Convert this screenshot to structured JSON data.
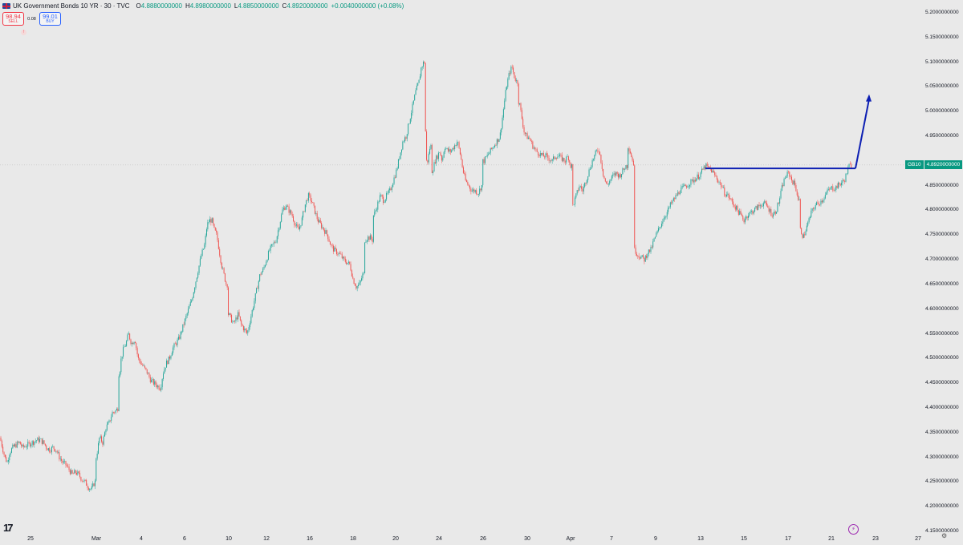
{
  "legend": {
    "title": "UK Government Bonds 10 YR · 30 · TVC",
    "open_key": "O",
    "open_val": "4.8880000000",
    "high_key": "H",
    "high_val": "4.8980000000",
    "low_key": "L",
    "low_val": "4.8850000000",
    "close_key": "C",
    "close_val": "4.8920000000",
    "change": "+0.0040000000 (+0.08%)"
  },
  "trade": {
    "sell_price": "98.94",
    "sell_label": "SELL",
    "spread": "0.08",
    "buy_price": "99.01",
    "buy_label": "BUY"
  },
  "price_label": {
    "symbol": "GB10",
    "value": "4.8920000000"
  },
  "y_axis": [
    "5.2000000000",
    "5.1500000000",
    "5.1000000000",
    "5.0500000000",
    "5.0000000000",
    "4.9500000000",
    "4.8500000000",
    "4.8000000000",
    "4.7500000000",
    "4.7000000000",
    "4.6500000000",
    "4.6000000000",
    "4.5500000000",
    "4.5000000000",
    "4.4500000000",
    "4.4000000000",
    "4.3500000000",
    "4.3000000000",
    "4.2500000000",
    "4.2000000000",
    "4.1500000000"
  ],
  "x_axis": [
    "25",
    "Mar",
    "4",
    "6",
    "10",
    "12",
    "16",
    "18",
    "20",
    "24",
    "26",
    "30",
    "Apr",
    "7",
    "9",
    "13",
    "15",
    "17",
    "21",
    "23",
    "27"
  ],
  "chart_data": {
    "type": "candlestick",
    "ylim": [
      4.15,
      5.2
    ],
    "current_price": 4.892,
    "up_color": "#26a69a",
    "down_color": "#ef5350",
    "path": [
      [
        0,
        4.34
      ],
      [
        3,
        4.32
      ],
      [
        6,
        4.3
      ],
      [
        9,
        4.29
      ],
      [
        12,
        4.31
      ],
      [
        16,
        4.32
      ],
      [
        20,
        4.325
      ],
      [
        24,
        4.33
      ],
      [
        28,
        4.32
      ],
      [
        34,
        4.325
      ],
      [
        40,
        4.33
      ],
      [
        46,
        4.335
      ],
      [
        50,
        4.335
      ],
      [
        54,
        4.33
      ],
      [
        58,
        4.32
      ],
      [
        62,
        4.315
      ],
      [
        66,
        4.32
      ],
      [
        70,
        4.315
      ],
      [
        74,
        4.3
      ],
      [
        78,
        4.29
      ],
      [
        82,
        4.285
      ],
      [
        86,
        4.275
      ],
      [
        90,
        4.265
      ],
      [
        94,
        4.27
      ],
      [
        98,
        4.265
      ],
      [
        102,
        4.255
      ],
      [
        106,
        4.25
      ],
      [
        110,
        4.24
      ],
      [
        114,
        4.235
      ],
      [
        118,
        4.25
      ],
      [
        120,
        4.3
      ],
      [
        124,
        4.34
      ],
      [
        128,
        4.33
      ],
      [
        132,
        4.36
      ],
      [
        136,
        4.37
      ],
      [
        140,
        4.39
      ],
      [
        145,
        4.395
      ],
      [
        147,
        4.4
      ],
      [
        149,
        4.47
      ],
      [
        151,
        4.5
      ],
      [
        154,
        4.52
      ],
      [
        157,
        4.53
      ],
      [
        160,
        4.55
      ],
      [
        164,
        4.53
      ],
      [
        168,
        4.54
      ],
      [
        172,
        4.5
      ],
      [
        176,
        4.49
      ],
      [
        180,
        4.48
      ],
      [
        184,
        4.47
      ],
      [
        188,
        4.455
      ],
      [
        192,
        4.45
      ],
      [
        196,
        4.445
      ],
      [
        200,
        4.44
      ],
      [
        203,
        4.47
      ],
      [
        207,
        4.49
      ],
      [
        211,
        4.5
      ],
      [
        215,
        4.52
      ],
      [
        219,
        4.53
      ],
      [
        223,
        4.54
      ],
      [
        227,
        4.56
      ],
      [
        231,
        4.58
      ],
      [
        235,
        4.6
      ],
      [
        239,
        4.62
      ],
      [
        243,
        4.65
      ],
      [
        247,
        4.68
      ],
      [
        251,
        4.71
      ],
      [
        255,
        4.73
      ],
      [
        258,
        4.77
      ],
      [
        261,
        4.78
      ],
      [
        264,
        4.78
      ],
      [
        267,
        4.76
      ],
      [
        270,
        4.75
      ],
      [
        273,
        4.72
      ],
      [
        276,
        4.69
      ],
      [
        279,
        4.67
      ],
      [
        282,
        4.65
      ],
      [
        285,
        4.59
      ],
      [
        288,
        4.58
      ],
      [
        291,
        4.57
      ],
      [
        294,
        4.58
      ],
      [
        297,
        4.59
      ],
      [
        300,
        4.57
      ],
      [
        304,
        4.56
      ],
      [
        308,
        4.55
      ],
      [
        312,
        4.58
      ],
      [
        316,
        4.61
      ],
      [
        320,
        4.64
      ],
      [
        324,
        4.67
      ],
      [
        328,
        4.68
      ],
      [
        332,
        4.7
      ],
      [
        336,
        4.72
      ],
      [
        340,
        4.73
      ],
      [
        344,
        4.74
      ],
      [
        348,
        4.77
      ],
      [
        352,
        4.8
      ],
      [
        356,
        4.81
      ],
      [
        360,
        4.8
      ],
      [
        364,
        4.79
      ],
      [
        368,
        4.77
      ],
      [
        372,
        4.76
      ],
      [
        376,
        4.78
      ],
      [
        380,
        4.81
      ],
      [
        384,
        4.83
      ],
      [
        388,
        4.82
      ],
      [
        392,
        4.8
      ],
      [
        396,
        4.78
      ],
      [
        400,
        4.77
      ],
      [
        404,
        4.76
      ],
      [
        408,
        4.75
      ],
      [
        412,
        4.73
      ],
      [
        416,
        4.72
      ],
      [
        420,
        4.715
      ],
      [
        424,
        4.71
      ],
      [
        428,
        4.7
      ],
      [
        432,
        4.695
      ],
      [
        436,
        4.69
      ],
      [
        440,
        4.66
      ],
      [
        444,
        4.645
      ],
      [
        448,
        4.65
      ],
      [
        452,
        4.67
      ],
      [
        455,
        4.74
      ],
      [
        458,
        4.745
      ],
      [
        461,
        4.745
      ],
      [
        464,
        4.74
      ],
      [
        466,
        4.79
      ],
      [
        470,
        4.81
      ],
      [
        474,
        4.83
      ],
      [
        478,
        4.82
      ],
      [
        482,
        4.83
      ],
      [
        486,
        4.84
      ],
      [
        490,
        4.86
      ],
      [
        494,
        4.88
      ],
      [
        498,
        4.91
      ],
      [
        502,
        4.94
      ],
      [
        506,
        4.95
      ],
      [
        510,
        4.98
      ],
      [
        514,
        5.01
      ],
      [
        518,
        5.04
      ],
      [
        522,
        5.06
      ],
      [
        525,
        5.09
      ],
      [
        528,
        5.1
      ],
      [
        530,
        4.96
      ],
      [
        533,
        4.9
      ],
      [
        536,
        4.93
      ],
      [
        539,
        4.88
      ],
      [
        542,
        4.9
      ],
      [
        545,
        4.91
      ],
      [
        548,
        4.92
      ],
      [
        551,
        4.9
      ],
      [
        554,
        4.93
      ],
      [
        558,
        4.92
      ],
      [
        562,
        4.92
      ],
      [
        566,
        4.93
      ],
      [
        570,
        4.94
      ],
      [
        574,
        4.91
      ],
      [
        577,
        4.88
      ],
      [
        580,
        4.86
      ],
      [
        584,
        4.85
      ],
      [
        588,
        4.84
      ],
      [
        592,
        4.84
      ],
      [
        596,
        4.835
      ],
      [
        600,
        4.85
      ],
      [
        603,
        4.9
      ],
      [
        607,
        4.91
      ],
      [
        611,
        4.92
      ],
      [
        615,
        4.93
      ],
      [
        619,
        4.94
      ],
      [
        623,
        4.95
      ],
      [
        627,
        5.0
      ],
      [
        631,
        5.05
      ],
      [
        635,
        5.08
      ],
      [
        638,
        5.09
      ],
      [
        641,
        5.07
      ],
      [
        644,
        5.06
      ],
      [
        647,
        5.02
      ],
      [
        650,
        4.99
      ],
      [
        653,
        4.96
      ],
      [
        656,
        4.95
      ],
      [
        660,
        4.945
      ],
      [
        664,
        4.93
      ],
      [
        668,
        4.92
      ],
      [
        672,
        4.915
      ],
      [
        676,
        4.91
      ],
      [
        680,
        4.91
      ],
      [
        684,
        4.905
      ],
      [
        688,
        4.9
      ],
      [
        692,
        4.91
      ],
      [
        696,
        4.91
      ],
      [
        700,
        4.905
      ],
      [
        704,
        4.9
      ],
      [
        708,
        4.91
      ],
      [
        711,
        4.89
      ],
      [
        714,
        4.81
      ],
      [
        718,
        4.83
      ],
      [
        722,
        4.85
      ],
      [
        726,
        4.84
      ],
      [
        730,
        4.86
      ],
      [
        734,
        4.88
      ],
      [
        738,
        4.9
      ],
      [
        742,
        4.915
      ],
      [
        746,
        4.925
      ],
      [
        749,
        4.9
      ],
      [
        752,
        4.87
      ],
      [
        756,
        4.85
      ],
      [
        760,
        4.86
      ],
      [
        764,
        4.87
      ],
      [
        768,
        4.875
      ],
      [
        772,
        4.87
      ],
      [
        776,
        4.88
      ],
      [
        780,
        4.89
      ],
      [
        783,
        4.93
      ],
      [
        786,
        4.915
      ],
      [
        789,
        4.895
      ],
      [
        791,
        4.72
      ],
      [
        795,
        4.71
      ],
      [
        799,
        4.705
      ],
      [
        803,
        4.7
      ],
      [
        807,
        4.715
      ],
      [
        811,
        4.72
      ],
      [
        815,
        4.74
      ],
      [
        819,
        4.755
      ],
      [
        823,
        4.77
      ],
      [
        827,
        4.785
      ],
      [
        831,
        4.795
      ],
      [
        835,
        4.81
      ],
      [
        839,
        4.82
      ],
      [
        843,
        4.83
      ],
      [
        847,
        4.84
      ],
      [
        851,
        4.845
      ],
      [
        855,
        4.85
      ],
      [
        859,
        4.855
      ],
      [
        863,
        4.86
      ],
      [
        867,
        4.865
      ],
      [
        871,
        4.87
      ],
      [
        875,
        4.88
      ],
      [
        879,
        4.89
      ],
      [
        883,
        4.885
      ],
      [
        887,
        4.88
      ],
      [
        891,
        4.87
      ],
      [
        895,
        4.86
      ],
      [
        899,
        4.85
      ],
      [
        903,
        4.835
      ],
      [
        907,
        4.83
      ],
      [
        911,
        4.82
      ],
      [
        915,
        4.81
      ],
      [
        919,
        4.8
      ],
      [
        923,
        4.79
      ],
      [
        927,
        4.78
      ],
      [
        931,
        4.79
      ],
      [
        935,
        4.795
      ],
      [
        939,
        4.8
      ],
      [
        943,
        4.805
      ],
      [
        947,
        4.81
      ],
      [
        951,
        4.815
      ],
      [
        955,
        4.81
      ],
      [
        959,
        4.8
      ],
      [
        963,
        4.79
      ],
      [
        967,
        4.8
      ],
      [
        971,
        4.82
      ],
      [
        975,
        4.85
      ],
      [
        979,
        4.87
      ],
      [
        983,
        4.875
      ],
      [
        987,
        4.86
      ],
      [
        991,
        4.85
      ],
      [
        995,
        4.82
      ],
      [
        998,
        4.76
      ],
      [
        1001,
        4.745
      ],
      [
        1004,
        4.76
      ],
      [
        1008,
        4.78
      ],
      [
        1012,
        4.8
      ],
      [
        1016,
        4.81
      ],
      [
        1020,
        4.815
      ],
      [
        1024,
        4.82
      ],
      [
        1028,
        4.83
      ],
      [
        1032,
        4.84
      ],
      [
        1036,
        4.845
      ],
      [
        1040,
        4.845
      ],
      [
        1044,
        4.85
      ],
      [
        1048,
        4.855
      ],
      [
        1052,
        4.86
      ],
      [
        1055,
        4.875
      ],
      [
        1058,
        4.89
      ],
      [
        1062,
        4.892
      ]
    ],
    "annotation": {
      "resistance_level": 4.885,
      "resistance_from_x": 879,
      "resistance_to_x": 1066,
      "arrow_to_price": 5.035,
      "arrow_color": "#0d1fb3"
    }
  },
  "icons": {
    "flag": "uk-flag-icon",
    "logo": "tradingview-logo-icon",
    "spark": "lightning-icon",
    "settings": "settings-icon"
  }
}
